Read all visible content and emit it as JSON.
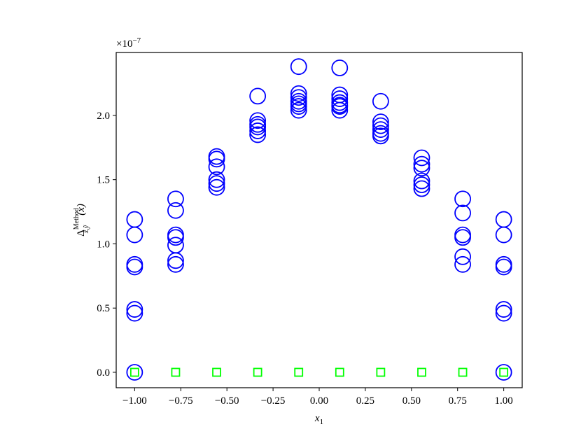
{
  "chart_data": {
    "type": "scatter",
    "xlabel": {
      "base": "x",
      "sub": "1"
    },
    "ylabel": {
      "base": "Δ",
      "sup": "Method",
      "sub": "x̃,ỹ",
      "arg": "(x)"
    },
    "offset_text": {
      "base": "×10",
      "sup": "−7"
    },
    "xlim": [
      -1.1,
      1.1
    ],
    "ylim": [
      -0.12,
      2.49
    ],
    "xticks": [
      {
        "value": -1,
        "label": "−1.00"
      },
      {
        "value": -0.75,
        "label": "−0.75"
      },
      {
        "value": -0.5,
        "label": "−0.50"
      },
      {
        "value": -0.25,
        "label": "−0.25"
      },
      {
        "value": 0,
        "label": "0.00"
      },
      {
        "value": 0.25,
        "label": "0.25"
      },
      {
        "value": 0.5,
        "label": "0.50"
      },
      {
        "value": 0.75,
        "label": "0.75"
      },
      {
        "value": 1,
        "label": "1.00"
      }
    ],
    "yticks": [
      {
        "value": 0,
        "label": "0.0"
      },
      0.5,
      {
        "value": 1,
        "label": "1.0"
      },
      1.5,
      {
        "value": 2,
        "label": "2.0"
      }
    ],
    "series": [
      {
        "color": "#0000ff",
        "marker": "circle",
        "x": [
          -1,
          -1,
          -1,
          -1,
          -1,
          -1,
          -1,
          -0.7778,
          -0.7778,
          -0.7778,
          -0.7778,
          -0.7778,
          -0.7778,
          -0.7778,
          -0.5556,
          -0.5556,
          -0.5556,
          -0.5556,
          -0.5556,
          -0.5556,
          -0.3333,
          -0.3333,
          -0.3333,
          -0.3333,
          -0.3333,
          -0.3333,
          -0.1111,
          -0.1111,
          -0.1111,
          -0.1111,
          -0.1111,
          -0.1111,
          -0.1111,
          0.1111,
          0.1111,
          0.1111,
          0.1111,
          0.1111,
          0.1111,
          0.1111,
          0.3333,
          0.3333,
          0.3333,
          0.3333,
          0.3333,
          0.3333,
          0.5556,
          0.5556,
          0.5556,
          0.5556,
          0.5556,
          0.5556,
          0.7778,
          0.7778,
          0.7778,
          0.7778,
          0.7778,
          0.7778,
          1,
          1,
          1,
          1,
          1,
          1,
          1
        ],
        "values": [
          1.19,
          1.07,
          0.84,
          0.82,
          0.49,
          0.46,
          0,
          1.35,
          1.26,
          1.07,
          1.05,
          0.99,
          0.87,
          0.84,
          1.68,
          1.66,
          1.6,
          1.5,
          1.47,
          1.44,
          2.15,
          1.96,
          1.93,
          1.91,
          1.88,
          1.85,
          2.38,
          2.17,
          2.14,
          2.11,
          2.09,
          2.07,
          2.04,
          2.37,
          2.16,
          2.13,
          2.1,
          2.08,
          2.07,
          2.04,
          2.11,
          1.95,
          1.92,
          1.89,
          1.86,
          1.84,
          1.67,
          1.62,
          1.59,
          1.49,
          1.46,
          1.43,
          1.35,
          1.24,
          1.07,
          1.05,
          0.9,
          0.84,
          1.19,
          1.07,
          0.84,
          0.82,
          0.49,
          0.46,
          0
        ]
      },
      {
        "color": "#00ff00",
        "marker": "square",
        "x": [
          -1,
          -0.7778,
          -0.5556,
          -0.3333,
          -0.1111,
          0.1111,
          0.3333,
          0.5556,
          0.7778,
          1
        ],
        "values": [
          0,
          0,
          0,
          0,
          0,
          0,
          0,
          0,
          0,
          0
        ]
      }
    ]
  }
}
